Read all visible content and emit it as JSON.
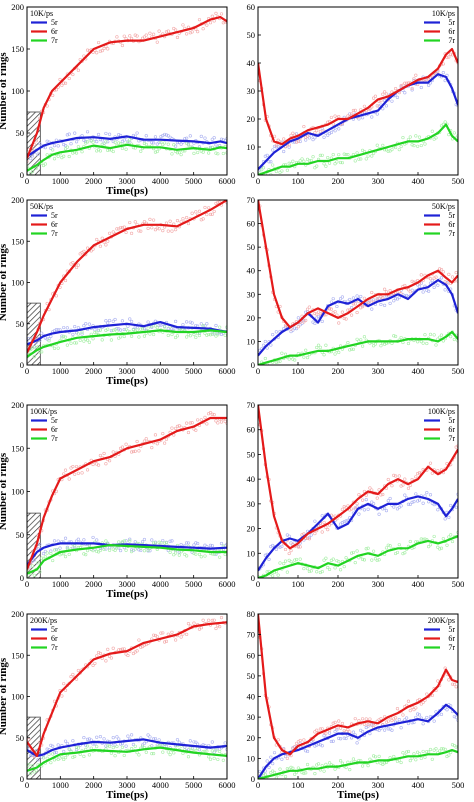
{
  "figure": {
    "colors": {
      "5r": "#1e22d6",
      "6r": "#e41a1a",
      "7r": "#22d422"
    }
  },
  "chart_data": [
    {
      "type": "line",
      "id": "a-left",
      "rate_label": "10K/ps",
      "xlabel": "Time(ps)",
      "ylabel": "Number of rings",
      "xlim": [
        0,
        6000
      ],
      "ylim": [
        0,
        200
      ],
      "xticks": [
        0,
        1000,
        2000,
        3000,
        4000,
        5000,
        6000
      ],
      "yticks": [
        0,
        50,
        100,
        150,
        200
      ],
      "legend": "top-left",
      "hatched_region": {
        "x": [
          0,
          400
        ],
        "y": [
          0,
          75
        ]
      },
      "x": [
        0,
        300,
        500,
        750,
        1000,
        1500,
        2000,
        2500,
        3000,
        3500,
        4000,
        4500,
        5000,
        5500,
        5800,
        6000
      ],
      "series": [
        {
          "name": "5r",
          "values": [
            22,
            30,
            35,
            38,
            40,
            44,
            45,
            43,
            46,
            42,
            42,
            41,
            40,
            38,
            40,
            38
          ]
        },
        {
          "name": "6r",
          "values": [
            20,
            50,
            80,
            100,
            110,
            130,
            150,
            158,
            160,
            160,
            165,
            170,
            175,
            185,
            188,
            183
          ]
        },
        {
          "name": "7r",
          "values": [
            5,
            12,
            18,
            24,
            27,
            30,
            35,
            32,
            36,
            33,
            33,
            30,
            32,
            30,
            33,
            32
          ]
        }
      ]
    },
    {
      "type": "line",
      "id": "a-right",
      "rate_label": "10K/ps",
      "xlabel": "",
      "ylabel": "",
      "xlim": [
        0,
        500
      ],
      "ylim": [
        0,
        60
      ],
      "xticks": [
        0,
        100,
        200,
        300,
        400,
        500
      ],
      "yticks": [
        0,
        10,
        20,
        30,
        40,
        50,
        60
      ],
      "legend": "top-right",
      "x": [
        0,
        20,
        40,
        60,
        80,
        100,
        125,
        150,
        175,
        200,
        225,
        250,
        275,
        300,
        325,
        350,
        375,
        400,
        425,
        450,
        470,
        485,
        500
      ],
      "series": [
        {
          "name": "5r",
          "values": [
            2,
            5,
            8,
            10,
            12,
            13,
            15,
            14,
            16,
            18,
            20,
            21,
            22,
            23,
            27,
            30,
            32,
            33,
            33,
            36,
            35,
            31,
            25
          ]
        },
        {
          "name": "6r",
          "values": [
            40,
            20,
            12,
            11,
            13,
            14,
            16,
            17,
            18,
            20,
            20,
            22,
            24,
            27,
            28,
            30,
            32,
            34,
            35,
            38,
            43,
            45,
            40
          ]
        },
        {
          "name": "7r",
          "values": [
            0,
            1,
            2,
            3,
            3,
            4,
            4,
            5,
            5,
            6,
            6,
            7,
            8,
            9,
            10,
            11,
            12,
            12,
            13,
            15,
            18,
            14,
            12
          ]
        }
      ]
    },
    {
      "type": "line",
      "id": "b-left",
      "rate_label": "50K/ps",
      "xlabel": "Time(ps)",
      "ylabel": "Number of rings",
      "xlim": [
        0,
        6000
      ],
      "ylim": [
        0,
        200
      ],
      "xticks": [
        0,
        1000,
        2000,
        3000,
        4000,
        5000,
        6000
      ],
      "yticks": [
        0,
        50,
        100,
        150,
        200
      ],
      "legend": "top-left",
      "hatched_region": {
        "x": [
          0,
          400
        ],
        "y": [
          0,
          75
        ]
      },
      "x": [
        0,
        300,
        500,
        750,
        1000,
        1500,
        2000,
        2500,
        3000,
        3500,
        4000,
        4500,
        5000,
        5500,
        6000
      ],
      "series": [
        {
          "name": "5r",
          "values": [
            25,
            30,
            35,
            38,
            40,
            42,
            46,
            48,
            50,
            47,
            52,
            46,
            45,
            44,
            40
          ]
        },
        {
          "name": "6r",
          "values": [
            15,
            40,
            60,
            80,
            100,
            125,
            145,
            155,
            165,
            170,
            170,
            168,
            178,
            188,
            200
          ]
        },
        {
          "name": "7r",
          "values": [
            10,
            18,
            22,
            25,
            28,
            33,
            35,
            37,
            38,
            40,
            42,
            40,
            40,
            42,
            40
          ]
        }
      ]
    },
    {
      "type": "line",
      "id": "b-right",
      "rate_label": "50K/ps",
      "xlabel": "",
      "ylabel": "",
      "xlim": [
        0,
        500
      ],
      "ylim": [
        0,
        70
      ],
      "xticks": [
        0,
        100,
        200,
        300,
        400,
        500
      ],
      "yticks": [
        0,
        10,
        20,
        30,
        40,
        50,
        60,
        70
      ],
      "legend": "top-right",
      "x": [
        0,
        20,
        40,
        60,
        80,
        100,
        125,
        150,
        175,
        200,
        225,
        250,
        275,
        300,
        325,
        350,
        375,
        400,
        425,
        450,
        470,
        485,
        500
      ],
      "series": [
        {
          "name": "5r",
          "values": [
            4,
            8,
            11,
            14,
            16,
            18,
            22,
            18,
            25,
            27,
            26,
            28,
            25,
            27,
            28,
            30,
            28,
            32,
            33,
            36,
            34,
            30,
            22
          ]
        },
        {
          "name": "6r",
          "values": [
            70,
            50,
            30,
            20,
            16,
            18,
            22,
            24,
            22,
            20,
            22,
            25,
            28,
            30,
            30,
            32,
            33,
            35,
            38,
            40,
            37,
            35,
            38
          ]
        },
        {
          "name": "7r",
          "values": [
            0,
            1,
            2,
            3,
            4,
            4,
            5,
            6,
            6,
            7,
            8,
            9,
            10,
            10,
            10,
            10,
            11,
            11,
            11,
            10,
            12,
            14,
            11
          ]
        }
      ]
    },
    {
      "type": "line",
      "id": "c-left",
      "rate_label": "100K/ps",
      "xlabel": "Time(ps)",
      "ylabel": "Number of rings",
      "xlim": [
        0,
        6000
      ],
      "ylim": [
        0,
        200
      ],
      "xticks": [
        0,
        1000,
        2000,
        3000,
        4000,
        5000,
        6000
      ],
      "yticks": [
        0,
        50,
        100,
        150,
        200
      ],
      "legend": "top-left",
      "hatched_region": {
        "x": [
          0,
          400
        ],
        "y": [
          0,
          75
        ]
      },
      "x": [
        0,
        300,
        500,
        750,
        1000,
        1500,
        2000,
        2500,
        3000,
        3500,
        4000,
        4500,
        5000,
        5500,
        6000
      ],
      "series": [
        {
          "name": "5r",
          "values": [
            15,
            30,
            35,
            38,
            40,
            40,
            40,
            38,
            39,
            38,
            37,
            36,
            35,
            34,
            35
          ]
        },
        {
          "name": "6r",
          "values": [
            10,
            40,
            70,
            95,
            115,
            125,
            135,
            140,
            150,
            155,
            160,
            170,
            175,
            185,
            185
          ]
        },
        {
          "name": "7r",
          "values": [
            5,
            10,
            20,
            25,
            30,
            33,
            35,
            38,
            37,
            36,
            35,
            33,
            32,
            30,
            30
          ]
        }
      ]
    },
    {
      "type": "line",
      "id": "c-right",
      "rate_label": "100K/ps",
      "xlabel": "",
      "ylabel": "",
      "xlim": [
        0,
        500
      ],
      "ylim": [
        0,
        70
      ],
      "xticks": [
        0,
        100,
        200,
        300,
        400,
        500
      ],
      "yticks": [
        0,
        10,
        20,
        30,
        40,
        50,
        60,
        70
      ],
      "legend": "top-right",
      "x": [
        0,
        20,
        40,
        60,
        80,
        100,
        125,
        150,
        175,
        200,
        225,
        250,
        275,
        300,
        325,
        350,
        375,
        400,
        425,
        450,
        470,
        485,
        500
      ],
      "series": [
        {
          "name": "5r",
          "values": [
            3,
            8,
            12,
            15,
            16,
            15,
            18,
            22,
            26,
            20,
            22,
            28,
            30,
            28,
            30,
            30,
            32,
            33,
            32,
            30,
            25,
            28,
            32
          ]
        },
        {
          "name": "6r",
          "values": [
            70,
            45,
            25,
            15,
            12,
            14,
            18,
            20,
            22,
            25,
            28,
            32,
            35,
            34,
            38,
            40,
            38,
            40,
            45,
            42,
            44,
            48,
            52
          ]
        },
        {
          "name": "7r",
          "values": [
            0,
            1,
            3,
            4,
            5,
            6,
            5,
            4,
            6,
            5,
            7,
            9,
            10,
            9,
            11,
            12,
            12,
            14,
            15,
            14,
            15,
            16,
            17
          ]
        }
      ]
    },
    {
      "type": "line",
      "id": "d-left",
      "rate_label": "200K/ps",
      "xlabel": "Time(ps)",
      "ylabel": "Number of rings",
      "xlim": [
        0,
        6000
      ],
      "ylim": [
        0,
        200
      ],
      "xticks": [
        0,
        1000,
        2000,
        3000,
        4000,
        5000,
        6000
      ],
      "yticks": [
        0,
        50,
        100,
        150,
        200
      ],
      "legend": "top-left",
      "hatched_region": {
        "x": [
          0,
          400
        ],
        "y": [
          0,
          75
        ]
      },
      "x": [
        0,
        300,
        500,
        750,
        1000,
        1500,
        2000,
        2500,
        3000,
        3500,
        4000,
        4500,
        5000,
        5500,
        6000
      ],
      "series": [
        {
          "name": "5r",
          "values": [
            35,
            28,
            30,
            35,
            38,
            42,
            45,
            44,
            46,
            48,
            44,
            42,
            40,
            38,
            40
          ]
        },
        {
          "name": "6r",
          "values": [
            45,
            28,
            55,
            80,
            105,
            125,
            145,
            152,
            155,
            165,
            170,
            175,
            185,
            188,
            190
          ]
        },
        {
          "name": "7r",
          "values": [
            10,
            14,
            20,
            25,
            30,
            32,
            35,
            34,
            33,
            36,
            38,
            35,
            32,
            30,
            28
          ]
        }
      ]
    },
    {
      "type": "line",
      "id": "d-right",
      "rate_label": "200K/ps",
      "xlabel": "Time(ps)",
      "ylabel": "",
      "xlim": [
        0,
        500
      ],
      "ylim": [
        0,
        80
      ],
      "xticks": [
        0,
        100,
        200,
        300,
        400,
        500
      ],
      "yticks": [
        0,
        10,
        20,
        30,
        40,
        50,
        60,
        70,
        80
      ],
      "legend": "top-right",
      "x": [
        0,
        20,
        40,
        60,
        80,
        100,
        125,
        150,
        175,
        200,
        225,
        250,
        275,
        300,
        325,
        350,
        375,
        400,
        425,
        450,
        470,
        485,
        500
      ],
      "series": [
        {
          "name": "5r",
          "values": [
            0,
            6,
            10,
            12,
            13,
            14,
            16,
            18,
            20,
            22,
            22,
            20,
            23,
            25,
            26,
            27,
            28,
            29,
            28,
            32,
            36,
            34,
            31
          ]
        },
        {
          "name": "6r",
          "values": [
            80,
            40,
            20,
            14,
            12,
            16,
            18,
            22,
            24,
            26,
            25,
            27,
            28,
            27,
            30,
            32,
            35,
            37,
            40,
            45,
            53,
            48,
            47
          ]
        },
        {
          "name": "7r",
          "values": [
            0,
            1,
            2,
            3,
            4,
            4,
            5,
            5,
            6,
            6,
            7,
            8,
            8,
            9,
            9,
            10,
            11,
            11,
            12,
            12,
            13,
            14,
            13
          ]
        }
      ]
    }
  ]
}
